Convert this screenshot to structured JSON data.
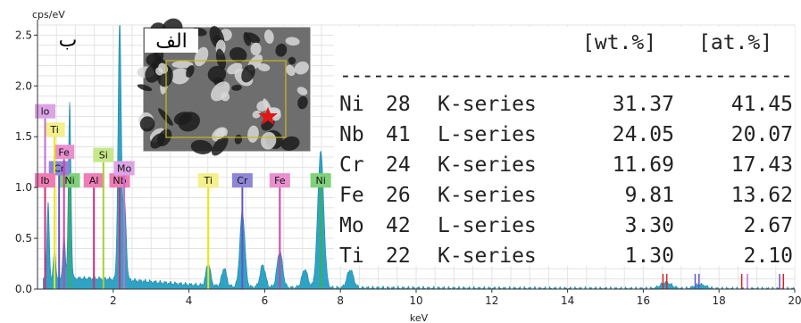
{
  "chart_data": {
    "type": "line",
    "title": "",
    "xlabel": "keV",
    "ylabel": "cps/eV",
    "xlim": [
      0,
      20
    ],
    "ylim": [
      0,
      2.6
    ],
    "x_ticks": [
      "2",
      "4",
      "6",
      "8",
      "10",
      "12",
      "14",
      "16",
      "18",
      "20"
    ],
    "y_ticks": [
      "0.0",
      "0.5",
      "1.0",
      "1.5",
      "2.0",
      "2.5"
    ],
    "grid": true,
    "spectrum_color": "#2fa3c4",
    "peaks": [
      {
        "x": 0.28,
        "y": 0.75
      },
      {
        "x": 0.45,
        "y": 0.28
      },
      {
        "x": 0.7,
        "y": 0.42
      },
      {
        "x": 0.85,
        "y": 1.72
      },
      {
        "x": 2.17,
        "y": 2.53
      },
      {
        "x": 2.3,
        "y": 0.75
      },
      {
        "x": 4.51,
        "y": 0.22
      },
      {
        "x": 4.93,
        "y": 0.18
      },
      {
        "x": 5.41,
        "y": 0.74
      },
      {
        "x": 5.95,
        "y": 0.22
      },
      {
        "x": 6.4,
        "y": 0.36
      },
      {
        "x": 7.06,
        "y": 0.18
      },
      {
        "x": 7.48,
        "y": 1.35
      },
      {
        "x": 8.26,
        "y": 0.18
      },
      {
        "x": 16.6,
        "y": 0.06
      },
      {
        "x": 17.5,
        "y": 0.04
      }
    ],
    "element_markers": [
      {
        "label": "Ti",
        "x": 4.51,
        "height": 1.0,
        "color": "#e8e80a",
        "label_bg": "#f4f08a"
      },
      {
        "label": "Cr",
        "x": 5.41,
        "height": 1.0,
        "color": "#6a52c8",
        "label_bg": "#8f86d6"
      },
      {
        "label": "Fe",
        "x": 6.4,
        "height": 1.0,
        "color": "#d040a8",
        "label_bg": "#e98fd0"
      },
      {
        "label": "Ni",
        "x": 7.48,
        "height": 1.0,
        "color": "#3db04a",
        "label_bg": "#7fd27a"
      },
      {
        "label": "Al",
        "x": 1.49,
        "height": 1.0,
        "color": "#d0307a",
        "label_bg": "#ef7db5"
      },
      {
        "label": "Nb",
        "x": 2.17,
        "height": 1.0,
        "color": "#d0307a",
        "label_bg": "#ef7db5"
      },
      {
        "label": "Si",
        "x": 1.74,
        "height": 1.25,
        "color": "#a8d030",
        "label_bg": "#c7e88a"
      },
      {
        "label": "Mo",
        "x": 2.29,
        "height": 1.12,
        "color": "#c070d0",
        "label_bg": "#dca3e6"
      },
      {
        "label": "Ni",
        "x": 0.85,
        "height": 1.0,
        "color": "#3db04a",
        "label_bg": "#7fd27a"
      },
      {
        "label": "Cr",
        "x": 0.57,
        "height": 1.12,
        "color": "#6a52c8",
        "label_bg": "#8f86d6"
      },
      {
        "label": "Fe",
        "x": 0.7,
        "height": 1.28,
        "color": "#d040a8",
        "label_bg": "#e98fd0"
      },
      {
        "label": "Ti",
        "x": 0.45,
        "height": 1.5,
        "color": "#e8e80a",
        "label_bg": "#f4f08a"
      },
      {
        "label": "lo",
        "x": 0.2,
        "height": 1.68,
        "color": "#c070d0",
        "label_bg": "#dca3e6"
      },
      {
        "label": "lb",
        "x": 0.2,
        "height": 1.0,
        "color": "#d0307a",
        "label_bg": "#ef7db5"
      }
    ],
    "far_markers": [
      {
        "x": 16.52,
        "color": "#e02020"
      },
      {
        "x": 16.62,
        "color": "#e02020"
      },
      {
        "x": 17.37,
        "color": "#6a52c8"
      },
      {
        "x": 17.47,
        "color": "#6a52c8"
      },
      {
        "x": 18.6,
        "color": "#e02020"
      },
      {
        "x": 18.75,
        "color": "#c070d0"
      },
      {
        "x": 19.6,
        "color": "#6a52c8"
      },
      {
        "x": 19.7,
        "color": "#e02020"
      }
    ]
  },
  "panel_labels": {
    "spectrum": "ب",
    "image": "الف"
  },
  "composition_table": {
    "header_wt": "[wt.%]",
    "header_at": "[at.%]",
    "separator": "-----------------------------------------",
    "rows": [
      {
        "element": "Ni",
        "z": "28",
        "series": "K-series",
        "wt": "31.37",
        "at": "41.45"
      },
      {
        "element": "Nb",
        "z": "41",
        "series": "L-series",
        "wt": "24.05",
        "at": "20.07"
      },
      {
        "element": "Cr",
        "z": "24",
        "series": "K-series",
        "wt": "11.69",
        "at": "17.43"
      },
      {
        "element": "Fe",
        "z": "26",
        "series": "K-series",
        "wt": "9.81",
        "at": "13.62"
      },
      {
        "element": "Mo",
        "z": "42",
        "series": "L-series",
        "wt": "3.30",
        "at": "2.67"
      },
      {
        "element": "Ti",
        "z": "22",
        "series": "K-series",
        "wt": "1.30",
        "at": "2.10"
      }
    ]
  },
  "colors": {
    "frame_box": "#c9b81a",
    "marker_star": "#e01818"
  }
}
